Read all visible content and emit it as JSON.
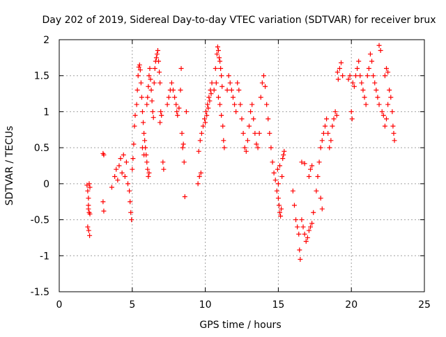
{
  "chart_data": {
    "type": "scatter",
    "title": "Day 202 of 2019, Sidereal Day-to-day VTEC variation (SDTVAR) for receiver brux",
    "xlabel": "GPS time / hours",
    "ylabel": "SDTVAR / TECUs",
    "xlim": [
      0,
      25
    ],
    "ylim": [
      -1.5,
      2
    ],
    "xticks": [
      "0",
      "5",
      "10",
      "15",
      "20",
      "25"
    ],
    "yticks": [
      "-1.5",
      "-1",
      "-0.5",
      "0",
      "0.5",
      "1",
      "1.5",
      "2"
    ],
    "grid": true,
    "marker": "+",
    "marker_color": "#ff0000",
    "series": [
      {
        "name": "SDTVAR",
        "points": [
          [
            1.9,
            -0.02
          ],
          [
            1.95,
            -0.1
          ],
          [
            2.0,
            -0.2
          ],
          [
            2.0,
            -0.35
          ],
          [
            2.05,
            -0.4
          ],
          [
            2.05,
            0.0
          ],
          [
            2.1,
            -0.05
          ],
          [
            1.95,
            -0.6
          ],
          [
            2.02,
            -0.65
          ],
          [
            2.08,
            -0.72
          ],
          [
            2.0,
            -0.3
          ],
          [
            2.1,
            -0.42
          ],
          [
            3.0,
            0.42
          ],
          [
            3.05,
            0.4
          ],
          [
            3.05,
            -0.38
          ],
          [
            3.0,
            -0.25
          ],
          [
            3.6,
            -0.05
          ],
          [
            3.8,
            0.1
          ],
          [
            3.9,
            0.2
          ],
          [
            4.0,
            0.05
          ],
          [
            4.1,
            0.25
          ],
          [
            4.2,
            0.35
          ],
          [
            4.3,
            0.15
          ],
          [
            4.4,
            0.4
          ],
          [
            4.5,
            0.1
          ],
          [
            4.6,
            0.3
          ],
          [
            4.7,
            0.0
          ],
          [
            4.8,
            -0.1
          ],
          [
            4.85,
            -0.25
          ],
          [
            4.9,
            -0.4
          ],
          [
            4.95,
            -0.5
          ],
          [
            5.0,
            0.2
          ],
          [
            5.05,
            0.35
          ],
          [
            5.1,
            0.55
          ],
          [
            5.15,
            0.8
          ],
          [
            5.2,
            0.95
          ],
          [
            5.3,
            1.1
          ],
          [
            5.35,
            1.3
          ],
          [
            5.4,
            1.5
          ],
          [
            5.45,
            1.62
          ],
          [
            5.5,
            1.65
          ],
          [
            5.55,
            1.58
          ],
          [
            5.6,
            1.4
          ],
          [
            5.65,
            1.2
          ],
          [
            5.7,
            1.0
          ],
          [
            5.75,
            0.85
          ],
          [
            5.8,
            0.7
          ],
          [
            5.85,
            0.6
          ],
          [
            5.9,
            0.5
          ],
          [
            5.95,
            0.4
          ],
          [
            6.0,
            0.3
          ],
          [
            6.05,
            0.2
          ],
          [
            6.1,
            0.1
          ],
          [
            6.15,
            0.15
          ],
          [
            5.8,
            0.4
          ],
          [
            5.7,
            0.5
          ],
          [
            6.0,
            1.1
          ],
          [
            6.05,
            1.2
          ],
          [
            6.1,
            1.35
          ],
          [
            6.15,
            1.5
          ],
          [
            6.2,
            1.6
          ],
          [
            6.25,
            1.45
          ],
          [
            6.3,
            1.3
          ],
          [
            6.35,
            1.15
          ],
          [
            6.4,
            1.0
          ],
          [
            6.45,
            0.92
          ],
          [
            6.5,
            1.4
          ],
          [
            6.55,
            1.6
          ],
          [
            6.6,
            1.7
          ],
          [
            6.65,
            1.75
          ],
          [
            6.7,
            1.8
          ],
          [
            6.75,
            1.85
          ],
          [
            6.8,
            1.7
          ],
          [
            6.85,
            1.55
          ],
          [
            6.9,
            1.4
          ],
          [
            6.95,
            1.0
          ],
          [
            7.0,
            0.95
          ],
          [
            6.9,
            0.85
          ],
          [
            7.1,
            0.3
          ],
          [
            7.15,
            0.2
          ],
          [
            7.4,
            1.1
          ],
          [
            7.5,
            1.2
          ],
          [
            7.6,
            1.3
          ],
          [
            7.7,
            1.4
          ],
          [
            7.8,
            1.3
          ],
          [
            7.9,
            1.2
          ],
          [
            8.0,
            1.1
          ],
          [
            8.05,
            1.0
          ],
          [
            8.1,
            0.95
          ],
          [
            8.2,
            1.05
          ],
          [
            8.3,
            1.3
          ],
          [
            8.35,
            1.6
          ],
          [
            8.4,
            0.7
          ],
          [
            8.45,
            0.5
          ],
          [
            8.5,
            0.55
          ],
          [
            8.55,
            0.3
          ],
          [
            8.6,
            -0.18
          ],
          [
            8.7,
            1.0
          ],
          [
            9.5,
            0.0
          ],
          [
            9.6,
            0.1
          ],
          [
            9.7,
            0.15
          ],
          [
            9.55,
            0.45
          ],
          [
            9.65,
            0.6
          ],
          [
            9.75,
            0.7
          ],
          [
            9.85,
            0.8
          ],
          [
            9.95,
            0.9
          ],
          [
            10.05,
            1.0
          ],
          [
            10.15,
            1.1
          ],
          [
            10.25,
            1.2
          ],
          [
            10.35,
            1.3
          ],
          [
            10.45,
            1.4
          ],
          [
            10.4,
            1.25
          ],
          [
            10.3,
            1.15
          ],
          [
            10.2,
            1.05
          ],
          [
            10.1,
            0.95
          ],
          [
            10.0,
            0.85
          ],
          [
            10.6,
            1.3
          ],
          [
            10.7,
            1.6
          ],
          [
            10.8,
            1.8
          ],
          [
            10.85,
            1.9
          ],
          [
            10.9,
            1.85
          ],
          [
            10.95,
            1.75
          ],
          [
            11.0,
            1.7
          ],
          [
            11.05,
            1.6
          ],
          [
            11.1,
            1.5
          ],
          [
            11.15,
            1.35
          ],
          [
            10.75,
            1.4
          ],
          [
            10.9,
            1.2
          ],
          [
            11.0,
            1.1
          ],
          [
            11.1,
            0.95
          ],
          [
            11.2,
            0.8
          ],
          [
            11.25,
            0.6
          ],
          [
            11.3,
            0.5
          ],
          [
            11.5,
            1.3
          ],
          [
            11.6,
            1.5
          ],
          [
            11.7,
            1.4
          ],
          [
            11.8,
            1.3
          ],
          [
            11.9,
            1.2
          ],
          [
            12.0,
            1.1
          ],
          [
            12.1,
            1.0
          ],
          [
            12.2,
            1.4
          ],
          [
            12.3,
            1.3
          ],
          [
            12.4,
            1.1
          ],
          [
            12.5,
            0.9
          ],
          [
            12.6,
            0.7
          ],
          [
            12.7,
            0.5
          ],
          [
            12.8,
            0.45
          ],
          [
            12.9,
            0.6
          ],
          [
            13.0,
            0.8
          ],
          [
            13.1,
            1.0
          ],
          [
            13.2,
            1.1
          ],
          [
            13.3,
            0.9
          ],
          [
            13.4,
            0.7
          ],
          [
            13.5,
            0.55
          ],
          [
            13.6,
            0.5
          ],
          [
            13.7,
            0.7
          ],
          [
            13.8,
            1.2
          ],
          [
            13.9,
            1.4
          ],
          [
            14.0,
            1.5
          ],
          [
            14.1,
            1.35
          ],
          [
            14.2,
            1.1
          ],
          [
            14.3,
            0.9
          ],
          [
            14.4,
            0.7
          ],
          [
            14.5,
            0.5
          ],
          [
            14.6,
            0.3
          ],
          [
            14.7,
            0.15
          ],
          [
            14.8,
            0.05
          ],
          [
            14.9,
            -0.1
          ],
          [
            15.0,
            -0.2
          ],
          [
            15.05,
            -0.3
          ],
          [
            15.1,
            -0.4
          ],
          [
            15.15,
            -0.45
          ],
          [
            15.2,
            -0.35
          ],
          [
            15.25,
            0.1
          ],
          [
            15.3,
            0.35
          ],
          [
            15.35,
            0.4
          ],
          [
            15.4,
            0.45
          ],
          [
            15.0,
            0.0
          ],
          [
            14.95,
            0.2
          ],
          [
            15.1,
            0.25
          ],
          [
            16.0,
            -0.1
          ],
          [
            16.1,
            -0.3
          ],
          [
            16.2,
            -0.5
          ],
          [
            16.3,
            -0.6
          ],
          [
            16.4,
            -0.7
          ],
          [
            16.45,
            -0.92
          ],
          [
            16.5,
            -1.05
          ],
          [
            16.6,
            -0.5
          ],
          [
            16.7,
            -0.6
          ],
          [
            16.8,
            -0.7
          ],
          [
            16.9,
            -0.8
          ],
          [
            17.0,
            -0.75
          ],
          [
            17.1,
            -0.65
          ],
          [
            17.2,
            -0.6
          ],
          [
            17.3,
            -0.55
          ],
          [
            17.4,
            -0.4
          ],
          [
            16.8,
            0.28
          ],
          [
            16.6,
            0.3
          ],
          [
            17.1,
            0.1
          ],
          [
            17.2,
            0.2
          ],
          [
            17.3,
            0.25
          ],
          [
            17.6,
            -0.1
          ],
          [
            17.7,
            0.1
          ],
          [
            17.8,
            0.3
          ],
          [
            17.9,
            0.5
          ],
          [
            18.0,
            0.6
          ],
          [
            18.1,
            0.7
          ],
          [
            18.2,
            0.8
          ],
          [
            18.3,
            0.9
          ],
          [
            18.4,
            0.7
          ],
          [
            18.5,
            0.5
          ],
          [
            18.6,
            0.6
          ],
          [
            18.7,
            0.8
          ],
          [
            18.8,
            0.9
          ],
          [
            18.9,
            1.0
          ],
          [
            19.0,
            0.95
          ],
          [
            19.05,
            1.55
          ],
          [
            19.1,
            1.45
          ],
          [
            19.2,
            1.6
          ],
          [
            19.3,
            1.68
          ],
          [
            19.4,
            1.5
          ],
          [
            17.9,
            -0.2
          ],
          [
            18.0,
            -0.35
          ],
          [
            19.8,
            1.45
          ],
          [
            19.9,
            1.5
          ],
          [
            20.0,
            1.0
          ],
          [
            20.05,
            0.9
          ],
          [
            20.1,
            1.4
          ],
          [
            20.2,
            1.35
          ],
          [
            20.3,
            1.5
          ],
          [
            20.4,
            1.6
          ],
          [
            20.5,
            1.7
          ],
          [
            20.6,
            1.5
          ],
          [
            20.7,
            1.4
          ],
          [
            20.8,
            1.3
          ],
          [
            20.9,
            1.2
          ],
          [
            21.0,
            1.1
          ],
          [
            21.1,
            1.5
          ],
          [
            21.2,
            1.6
          ],
          [
            21.3,
            1.8
          ],
          [
            21.4,
            1.7
          ],
          [
            21.5,
            1.5
          ],
          [
            21.6,
            1.4
          ],
          [
            21.7,
            1.3
          ],
          [
            21.8,
            1.2
          ],
          [
            21.9,
            1.1
          ],
          [
            21.9,
            1.92
          ],
          [
            22.0,
            1.85
          ],
          [
            22.1,
            1.0
          ],
          [
            22.2,
            0.95
          ],
          [
            22.3,
            1.5
          ],
          [
            22.4,
            1.6
          ],
          [
            22.5,
            1.55
          ],
          [
            22.6,
            1.3
          ],
          [
            22.7,
            1.2
          ],
          [
            22.8,
            1.0
          ],
          [
            22.85,
            0.8
          ],
          [
            22.9,
            0.7
          ],
          [
            22.95,
            0.6
          ],
          [
            22.5,
            1.1
          ],
          [
            22.4,
            0.9
          ],
          [
            22.3,
            0.8
          ]
        ]
      }
    ]
  }
}
